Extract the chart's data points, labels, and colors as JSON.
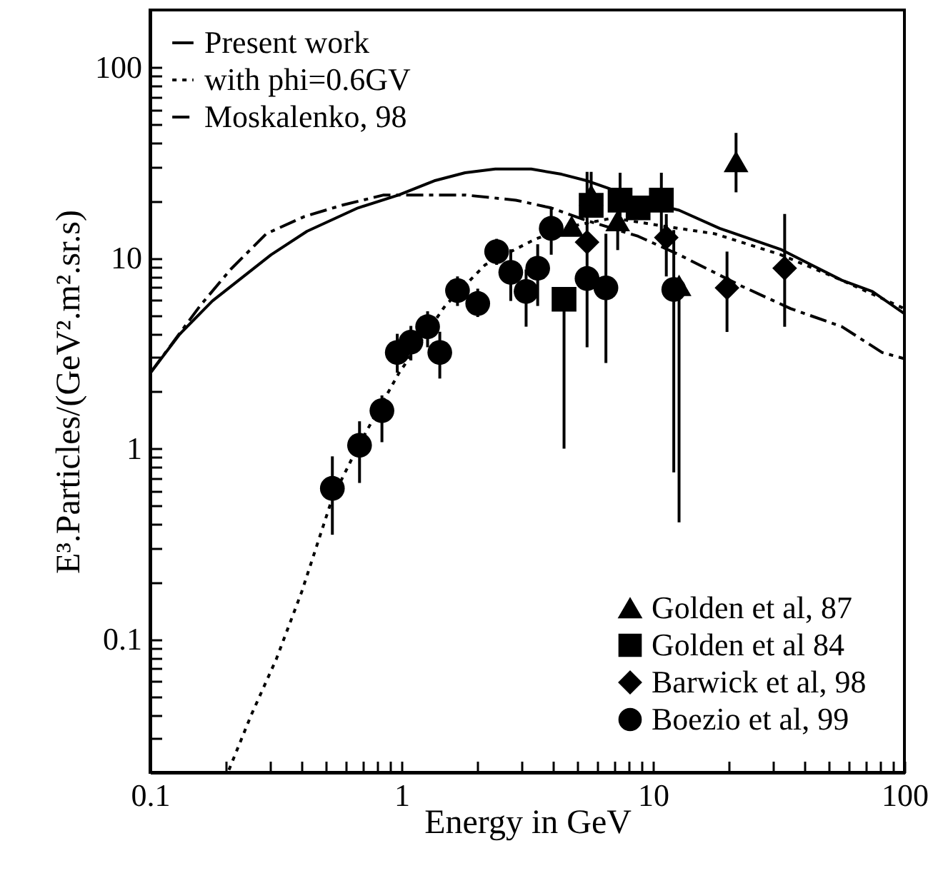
{
  "chart_data": {
    "type": "line",
    "xlabel": "Energy in GeV",
    "ylabel": "E³.Particles/(GeV².m².sr.s)",
    "log": "xy",
    "legend": "top left",
    "grid": false,
    "xlim": [
      0.1,
      100
    ],
    "ylim": [
      0.02,
      200
    ],
    "xticks": [
      0.1,
      {
        "value": 0.2,
        "label": null
      },
      {
        "value": 0.3,
        "label": null
      },
      {
        "value": 0.4,
        "label": null
      },
      {
        "value": 0.5,
        "label": null
      },
      {
        "value": 0.6,
        "label": null
      },
      {
        "value": 0.7,
        "label": null
      },
      {
        "value": 0.8,
        "label": null
      },
      {
        "value": 0.9,
        "label": null
      },
      1,
      {
        "value": 2,
        "label": null
      },
      {
        "value": 3,
        "label": null
      },
      {
        "value": 4,
        "label": null
      },
      {
        "value": 5,
        "label": null
      },
      {
        "value": 6,
        "label": null
      },
      {
        "value": 7,
        "label": null
      },
      {
        "value": 8,
        "label": null
      },
      {
        "value": 9,
        "label": null
      },
      10,
      {
        "value": 20,
        "label": null
      },
      {
        "value": 30,
        "label": null
      },
      {
        "value": 40,
        "label": null
      },
      {
        "value": 50,
        "label": null
      },
      {
        "value": 60,
        "label": null
      },
      {
        "value": 70,
        "label": null
      },
      {
        "value": 80,
        "label": null
      },
      {
        "value": 90,
        "label": null
      },
      100
    ],
    "yticks": [
      {
        "value": 0.03,
        "label": null
      },
      {
        "value": 0.04,
        "label": null
      },
      {
        "value": 0.05,
        "label": null
      },
      {
        "value": 0.06,
        "label": null
      },
      {
        "value": 0.07,
        "label": null
      },
      {
        "value": 0.08,
        "label": null
      },
      {
        "value": 0.09,
        "label": null
      },
      0.1,
      {
        "value": 0.2,
        "label": null
      },
      {
        "value": 0.3,
        "label": null
      },
      {
        "value": 0.4,
        "label": null
      },
      {
        "value": 0.5,
        "label": null
      },
      {
        "value": 0.6,
        "label": null
      },
      {
        "value": 0.7,
        "label": null
      },
      {
        "value": 0.8,
        "label": null
      },
      {
        "value": 0.9,
        "label": null
      },
      1,
      {
        "value": 2,
        "label": null
      },
      {
        "value": 3,
        "label": null
      },
      {
        "value": 4,
        "label": null
      },
      {
        "value": 5,
        "label": null
      },
      {
        "value": 6,
        "label": null
      },
      {
        "value": 7,
        "label": null
      },
      {
        "value": 8,
        "label": null
      },
      {
        "value": 9,
        "label": null
      },
      10,
      {
        "value": 20,
        "label": null
      },
      {
        "value": 30,
        "label": null
      },
      {
        "value": 40,
        "label": null
      },
      {
        "value": 50,
        "label": null
      },
      {
        "value": 60,
        "label": null
      },
      {
        "value": 70,
        "label": null
      },
      {
        "value": 80,
        "label": null
      },
      {
        "value": 90,
        "label": null
      },
      100
    ],
    "series": [
      {
        "name": "Present work",
        "line_style": "solid",
        "color": "#000000",
        "x": [
          0.1,
          0.131,
          0.177,
          0.303,
          0.421,
          0.671,
          0.975,
          1.35,
          1.79,
          2.36,
          3.28,
          4.33,
          5.47,
          6.92,
          8.73,
          12.7,
          18.4,
          32.2,
          40.6,
          56.4,
          74.6,
          100
        ],
        "values": [
          2.48,
          3.97,
          5.95,
          10.4,
          13.8,
          18.3,
          21.4,
          25.4,
          28.0,
          29.3,
          29.3,
          27.5,
          25.4,
          22.8,
          20.1,
          17.8,
          14.3,
          11.1,
          9.5,
          7.64,
          6.67,
          5.1
        ]
      },
      {
        "name": "with phi=0.6GV",
        "line_style": "dotted",
        "color": "#000000",
        "x": [
          0.206,
          0.252,
          0.318,
          0.401,
          0.53,
          0.67,
          0.975,
          1.49,
          2.15,
          3.42,
          4.78,
          6.92,
          11.0,
          17.6,
          32.2,
          56.4,
          100
        ],
        "values": [
          0.0206,
          0.0397,
          0.0787,
          0.177,
          0.546,
          1.02,
          2.48,
          5.6,
          9.2,
          12.6,
          14.7,
          16.2,
          14.7,
          13.4,
          10.4,
          7.64,
          5.42
        ]
      },
      {
        "name": "Moskalenko, 98",
        "line_style": "dashed",
        "color": "#000000",
        "x": [
          0.1,
          0.158,
          0.209,
          0.29,
          0.411,
          0.58,
          0.85,
          1.79,
          2.85,
          3.94,
          5.47,
          8.73,
          12.7,
          22.2,
          35.3,
          56.4,
          81.6,
          100
        ],
        "values": [
          2.48,
          5.6,
          8.7,
          13.4,
          16.5,
          18.9,
          21.4,
          21.4,
          20.1,
          18.3,
          15.7,
          13.0,
          10.4,
          7.18,
          5.42,
          4.36,
          3.19,
          2.96
        ]
      },
      {
        "name": "Golden et al, 87",
        "type": "scatter",
        "marker": "triangle",
        "color": "#000000",
        "x": [
          21.4,
          5.68,
          4.75,
          7.24,
          12.7
        ],
        "values": [
          32.1,
          21.4,
          14.7,
          15.7,
          7.18
        ],
        "errors": [
          [
            22.1,
            45.3
          ],
          [
            21.4,
            28.3
          ],
          null,
          [
            11.0,
            15.7
          ],
          [
            0.41,
            7.18
          ]
        ]
      },
      {
        "name": "Golden et al 84",
        "type": "scatter",
        "marker": "square",
        "color": "#000000",
        "x": [
          5.68,
          7.4,
          8.73,
          10.8,
          4.43
        ],
        "values": [
          18.9,
          20.1,
          18.3,
          20.1,
          6.07
        ],
        "errors": [
          null,
          [
            14.0,
            28.0
          ],
          null,
          [
            13.0,
            28.0
          ],
          [
            1.0,
            6.07
          ]
        ]
      },
      {
        "name": "Barwick et al, 98",
        "type": "scatter",
        "marker": "diamond",
        "color": "#000000",
        "x": [
          5.47,
          11.3,
          19.7,
          33.4
        ],
        "values": [
          12.1,
          12.8,
          6.97,
          8.83
        ],
        "errors": [
          null,
          [
            8.0,
            17.0
          ],
          [
            4.09,
            10.8
          ],
          [
            4.36,
            17.0
          ]
        ]
      },
      {
        "name": "Boezio et al, 99",
        "type": "scatter",
        "marker": "circle",
        "color": "#000000",
        "x": [
          0.531,
          0.681,
          0.836,
          0.962,
          1.09,
          1.27,
          1.42,
          1.67,
          2.01,
          2.39,
          2.72,
          3.13,
          3.48,
          3.94,
          5.47,
          6.5,
          12.1
        ],
        "values": [
          0.618,
          1.04,
          1.58,
          3.19,
          3.62,
          4.36,
          3.19,
          6.74,
          5.77,
          10.8,
          8.4,
          6.67,
          8.83,
          14.3,
          7.8,
          6.97,
          6.83
        ],
        "errors": [
          [
            0.353,
            0.91
          ],
          [
            0.66,
            1.39
          ],
          [
            1.08,
            1.9
          ],
          [
            2.5,
            4.0
          ],
          [
            2.9,
            4.4
          ],
          [
            3.4,
            5.25
          ],
          [
            2.33,
            4.1
          ],
          [
            5.6,
            8.0
          ],
          [
            4.9,
            6.9
          ],
          [
            9.2,
            12.6
          ],
          [
            5.95,
            11.1
          ],
          [
            4.36,
            8.7
          ],
          [
            5.6,
            11.8
          ],
          [
            10.4,
            18.3
          ],
          [
            3.4,
            28.3
          ],
          [
            2.81,
            13.4
          ],
          [
            0.75,
            14.0
          ]
        ]
      }
    ]
  }
}
